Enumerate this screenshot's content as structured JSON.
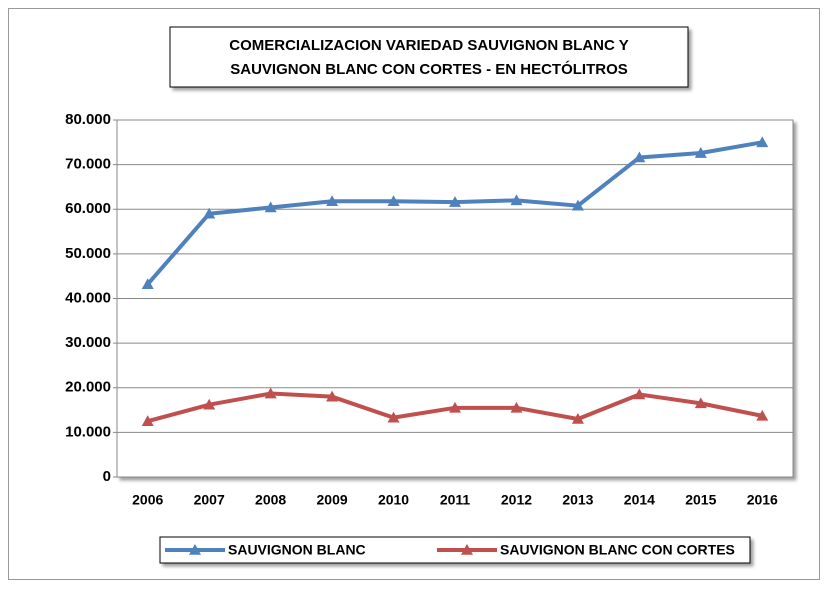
{
  "chart_data": {
    "type": "line",
    "title": [
      "COMERCIALIZACION VARIEDAD SAUVIGNON BLANC Y",
      "SAUVIGNON BLANC CON CORTES - EN HECTÓLITROS"
    ],
    "categories": [
      "2006",
      "2007",
      "2008",
      "2009",
      "2010",
      "2011",
      "2012",
      "2013",
      "2014",
      "2015",
      "2016"
    ],
    "series": [
      {
        "name": "SAUVIGNON BLANC",
        "color": "#4f81bd",
        "values": [
          43200,
          59000,
          60400,
          61800,
          61800,
          61600,
          62000,
          60800,
          71600,
          72600,
          75000
        ]
      },
      {
        "name": "SAUVIGNON BLANC CON CORTES",
        "color": "#c0504d",
        "values": [
          12500,
          16200,
          18700,
          18000,
          13300,
          15500,
          15500,
          13000,
          18500,
          16500,
          13700
        ]
      }
    ],
    "ylim": [
      0,
      80000
    ],
    "yticks": [
      0,
      {
        "value": 10000,
        "label": "10.000"
      },
      {
        "value": 20000,
        "label": "20.000"
      },
      {
        "value": 30000,
        "label": "30.000"
      },
      {
        "value": 40000,
        "label": "40.000"
      },
      {
        "value": 50000,
        "label": "50.000"
      },
      {
        "value": 60000,
        "label": "60.000"
      },
      {
        "value": 70000,
        "label": "70.000"
      },
      {
        "value": 80000,
        "label": "80.000"
      }
    ],
    "grid": true,
    "legend": "bottom"
  }
}
